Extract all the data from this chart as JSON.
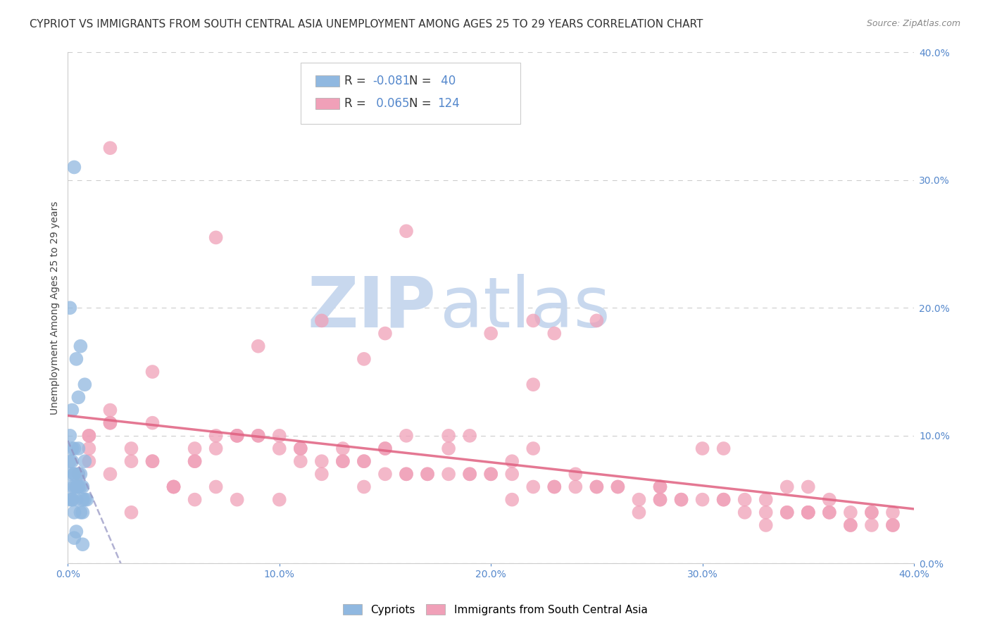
{
  "title": "CYPRIOT VS IMMIGRANTS FROM SOUTH CENTRAL ASIA UNEMPLOYMENT AMONG AGES 25 TO 29 YEARS CORRELATION CHART",
  "source": "Source: ZipAtlas.com",
  "ylabel": "Unemployment Among Ages 25 to 29 years",
  "xlim": [
    0.0,
    0.4
  ],
  "ylim": [
    0.0,
    0.4
  ],
  "xticks": [
    0.0,
    0.1,
    0.2,
    0.3,
    0.4
  ],
  "yticks": [
    0.0,
    0.1,
    0.2,
    0.3,
    0.4
  ],
  "xtick_labels": [
    "0.0%",
    "",
    "",
    "",
    "40.0%"
  ],
  "background_color": "#ffffff",
  "grid_color": "#cccccc",
  "watermark_zip": "ZIP",
  "watermark_atlas": "atlas",
  "watermark_color": "#c8d8ee",
  "blue_R": -0.081,
  "blue_N": 40,
  "pink_R": 0.065,
  "pink_N": 124,
  "title_fontsize": 11,
  "source_fontsize": 9,
  "axis_label_fontsize": 10,
  "tick_fontsize": 10,
  "legend_fontsize": 12,
  "blue_scatter_color": "#90b8e0",
  "pink_scatter_color": "#f0a0b8",
  "blue_line_color": "#9090c0",
  "pink_line_color": "#e06080",
  "dot_size": 200,
  "blue_label_r": "R = ",
  "blue_label_rval": "-0.081",
  "blue_label_n": "  N = ",
  "blue_label_nval": " 40",
  "pink_label_r": "R =  ",
  "pink_label_rval": "0.065",
  "pink_label_n": "  N = ",
  "pink_label_nval": "124",
  "blue_x": [
    0.005,
    0.003,
    0.008,
    0.002,
    0.006,
    0.001,
    0.004,
    0.007,
    0.003,
    0.002,
    0.009,
    0.001,
    0.005,
    0.003,
    0.006,
    0.002,
    0.004,
    0.007,
    0.001,
    0.003,
    0.005,
    0.002,
    0.008,
    0.004,
    0.006,
    0.001,
    0.003,
    0.005,
    0.007,
    0.002,
    0.004,
    0.006,
    0.001,
    0.003,
    0.008,
    0.002,
    0.005,
    0.007,
    0.003,
    0.004
  ],
  "blue_y": [
    0.07,
    0.06,
    0.05,
    0.08,
    0.06,
    0.07,
    0.05,
    0.04,
    0.09,
    0.06,
    0.05,
    0.08,
    0.06,
    0.07,
    0.04,
    0.09,
    0.06,
    0.05,
    0.1,
    0.07,
    0.06,
    0.05,
    0.08,
    0.06,
    0.07,
    0.05,
    0.04,
    0.09,
    0.06,
    0.05,
    0.16,
    0.17,
    0.2,
    0.31,
    0.14,
    0.12,
    0.13,
    0.015,
    0.02,
    0.025
  ],
  "pink_x": [
    0.005,
    0.12,
    0.08,
    0.15,
    0.22,
    0.18,
    0.25,
    0.31,
    0.1,
    0.06,
    0.09,
    0.14,
    0.2,
    0.28,
    0.35,
    0.38,
    0.02,
    0.05,
    0.11,
    0.16,
    0.23,
    0.3,
    0.36,
    0.03,
    0.07,
    0.13,
    0.19,
    0.26,
    0.33,
    0.04,
    0.08,
    0.15,
    0.21,
    0.27,
    0.34,
    0.37,
    0.01,
    0.06,
    0.12,
    0.18,
    0.24,
    0.32,
    0.39,
    0.02,
    0.07,
    0.14,
    0.2,
    0.29,
    0.35,
    0.38,
    0.04,
    0.09,
    0.16,
    0.22,
    0.28,
    0.33,
    0.01,
    0.05,
    0.11,
    0.17,
    0.23,
    0.31,
    0.36,
    0.03,
    0.08,
    0.14,
    0.21,
    0.27,
    0.34,
    0.39,
    0.02,
    0.06,
    0.13,
    0.19,
    0.25,
    0.3,
    0.37,
    0.04,
    0.1,
    0.16,
    0.22,
    0.28,
    0.35,
    0.01,
    0.07,
    0.12,
    0.18,
    0.24,
    0.32,
    0.38,
    0.03,
    0.09,
    0.15,
    0.2,
    0.26,
    0.33,
    0.36,
    0.02,
    0.08,
    0.14,
    0.05,
    0.11,
    0.17,
    0.23,
    0.29,
    0.34,
    0.37,
    0.01,
    0.06,
    0.13,
    0.19,
    0.25,
    0.31,
    0.39,
    0.04,
    0.1,
    0.15,
    0.21,
    0.28,
    0.35,
    0.02,
    0.07,
    0.16,
    0.22
  ],
  "pink_y": [
    0.07,
    0.19,
    0.05,
    0.18,
    0.19,
    0.07,
    0.19,
    0.09,
    0.05,
    0.08,
    0.1,
    0.08,
    0.07,
    0.06,
    0.04,
    0.03,
    0.12,
    0.06,
    0.09,
    0.1,
    0.18,
    0.09,
    0.05,
    0.04,
    0.06,
    0.08,
    0.07,
    0.06,
    0.03,
    0.15,
    0.1,
    0.07,
    0.05,
    0.04,
    0.06,
    0.03,
    0.09,
    0.05,
    0.08,
    0.1,
    0.07,
    0.04,
    0.03,
    0.11,
    0.09,
    0.16,
    0.18,
    0.05,
    0.06,
    0.04,
    0.08,
    0.17,
    0.07,
    0.09,
    0.05,
    0.04,
    0.1,
    0.06,
    0.08,
    0.07,
    0.06,
    0.05,
    0.04,
    0.09,
    0.1,
    0.06,
    0.08,
    0.05,
    0.04,
    0.03,
    0.07,
    0.09,
    0.08,
    0.1,
    0.06,
    0.05,
    0.04,
    0.11,
    0.09,
    0.07,
    0.06,
    0.05,
    0.04,
    0.08,
    0.1,
    0.07,
    0.09,
    0.06,
    0.05,
    0.04,
    0.08,
    0.1,
    0.09,
    0.07,
    0.06,
    0.05,
    0.04,
    0.11,
    0.1,
    0.08,
    0.06,
    0.09,
    0.07,
    0.06,
    0.05,
    0.04,
    0.03,
    0.1,
    0.08,
    0.09,
    0.07,
    0.06,
    0.05,
    0.04,
    0.08,
    0.1,
    0.09,
    0.07,
    0.06,
    0.04,
    0.325,
    0.255,
    0.26,
    0.14
  ]
}
